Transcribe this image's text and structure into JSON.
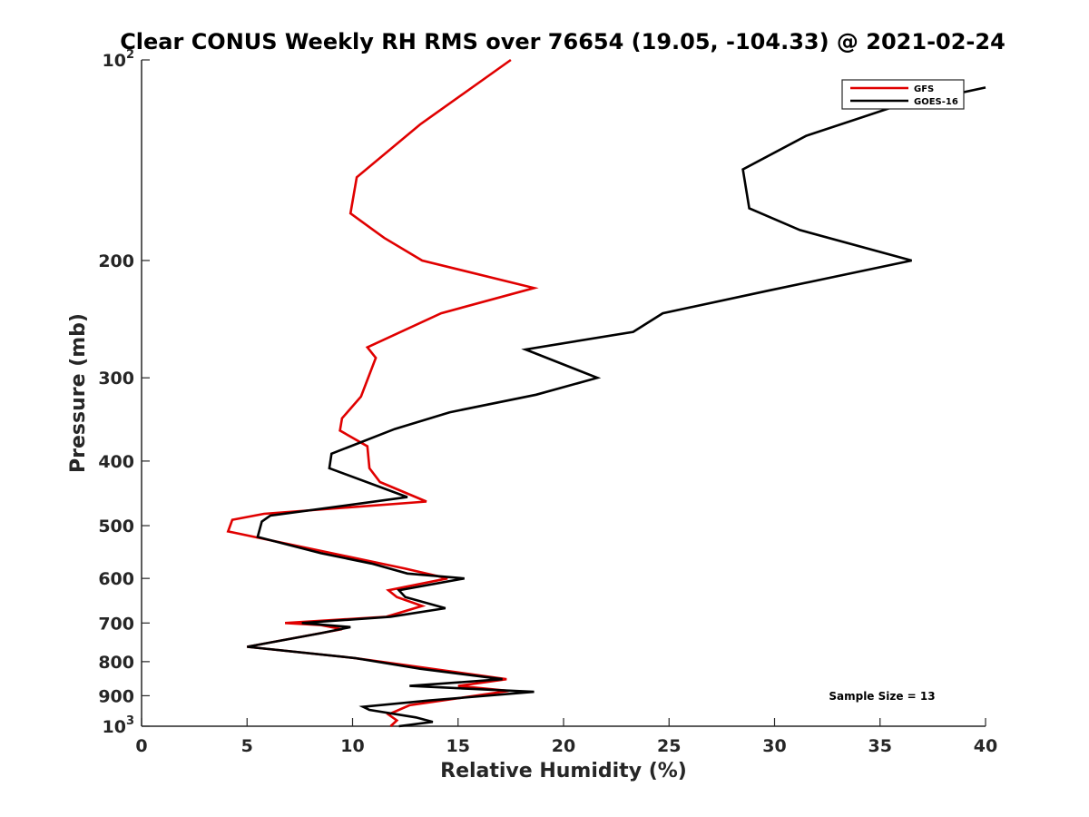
{
  "chart_data": {
    "type": "line",
    "title": "Clear CONUS Weekly RH RMS over 76654 (19.05, -104.33) @ 2021-02-24",
    "xlabel": "Relative Humidity (%)",
    "ylabel": "Pressure (mb)",
    "xlim": [
      0,
      40
    ],
    "ylim": [
      1000,
      100
    ],
    "yscale": "log",
    "y_reversed": true,
    "xticks": [
      0,
      5,
      10,
      15,
      20,
      25,
      30,
      35,
      40
    ],
    "xtick_labels": [
      "0",
      "5",
      "10",
      "15",
      "20",
      "25",
      "30",
      "35",
      "40"
    ],
    "yticks": [
      {
        "value": 100,
        "base": "10",
        "exp": "2"
      },
      {
        "value": 200,
        "label": "200"
      },
      {
        "value": 300,
        "label": "300"
      },
      {
        "value": 400,
        "label": "400"
      },
      {
        "value": 500,
        "label": "500"
      },
      {
        "value": 600,
        "label": "600"
      },
      {
        "value": 700,
        "label": "700"
      },
      {
        "value": 800,
        "label": "800"
      },
      {
        "value": 900,
        "label": "900"
      },
      {
        "value": 1000,
        "base": "10",
        "exp": "3"
      }
    ],
    "grid": false,
    "legend": {
      "position": "top-right",
      "entries": [
        "GFS",
        "GOES-16"
      ]
    },
    "annotation": "Sample Size = 13",
    "series": [
      {
        "name": "GFS",
        "color": "#e00000",
        "points": [
          [
            17.5,
            100
          ],
          [
            13.2,
            125
          ],
          [
            10.2,
            150
          ],
          [
            9.9,
            170
          ],
          [
            11.5,
            185
          ],
          [
            13.3,
            200
          ],
          [
            18.6,
            220
          ],
          [
            14.2,
            240
          ],
          [
            10.7,
            270
          ],
          [
            11.1,
            280
          ],
          [
            10.4,
            320
          ],
          [
            9.5,
            345
          ],
          [
            9.4,
            360
          ],
          [
            10.7,
            380
          ],
          [
            10.8,
            410
          ],
          [
            11.3,
            430
          ],
          [
            13.5,
            460
          ],
          [
            5.8,
            480
          ],
          [
            4.3,
            490
          ],
          [
            4.1,
            510
          ],
          [
            12.5,
            580
          ],
          [
            14.5,
            600
          ],
          [
            11.7,
            625
          ],
          [
            12.1,
            640
          ],
          [
            13.3,
            660
          ],
          [
            11.6,
            685
          ],
          [
            6.8,
            700
          ],
          [
            8.5,
            705
          ],
          [
            9.5,
            715
          ],
          [
            5.0,
            760
          ],
          [
            10.1,
            790
          ],
          [
            17.3,
            850
          ],
          [
            15.0,
            870
          ],
          [
            17.4,
            885
          ],
          [
            12.7,
            930
          ],
          [
            11.7,
            960
          ],
          [
            12.1,
            980
          ],
          [
            11.8,
            1000
          ]
        ]
      },
      {
        "name": "GOES-16",
        "color": "#000000",
        "points": [
          [
            40.0,
            110
          ],
          [
            35.5,
            118
          ],
          [
            31.5,
            130
          ],
          [
            28.5,
            146
          ],
          [
            28.8,
            167
          ],
          [
            31.2,
            180
          ],
          [
            36.5,
            200
          ],
          [
            29.7,
            222
          ],
          [
            24.7,
            240
          ],
          [
            23.3,
            256
          ],
          [
            18.2,
            272
          ],
          [
            21.6,
            300
          ],
          [
            18.7,
            318
          ],
          [
            14.6,
            338
          ],
          [
            12.0,
            358
          ],
          [
            9.0,
            390
          ],
          [
            8.9,
            410
          ],
          [
            12.6,
            453
          ],
          [
            6.1,
            483
          ],
          [
            5.7,
            493
          ],
          [
            5.5,
            520
          ],
          [
            8.5,
            550
          ],
          [
            10.9,
            570
          ],
          [
            12.6,
            590
          ],
          [
            15.3,
            600
          ],
          [
            12.2,
            625
          ],
          [
            12.5,
            640
          ],
          [
            14.4,
            665
          ],
          [
            11.8,
            685
          ],
          [
            7.6,
            700
          ],
          [
            9.9,
            710
          ],
          [
            8.5,
            725
          ],
          [
            5.0,
            760
          ],
          [
            10.1,
            790
          ],
          [
            13.2,
            820
          ],
          [
            17.1,
            850
          ],
          [
            12.7,
            870
          ],
          [
            18.6,
            888
          ],
          [
            13.6,
            915
          ],
          [
            10.5,
            935
          ],
          [
            10.8,
            945
          ],
          [
            13.0,
            970
          ],
          [
            13.8,
            985
          ],
          [
            12.2,
            1000
          ]
        ]
      }
    ]
  }
}
